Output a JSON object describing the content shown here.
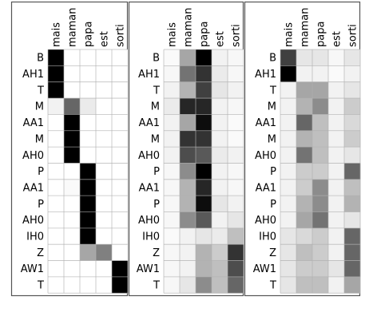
{
  "chart_data": {
    "type": "heatmap",
    "x_labels": [
      "mais",
      "maman",
      "papa",
      "est",
      "sorti"
    ],
    "y_labels": [
      "B",
      "AH1",
      "T",
      "M",
      "AA1",
      "M",
      "AH0",
      "P",
      "AA1",
      "P",
      "AH0",
      "IH0",
      "Z",
      "AW1",
      "T"
    ],
    "colormap": "gray_r",
    "value_range": [
      0,
      1
    ],
    "grid": true,
    "panels": [
      {
        "values": [
          [
            1.0,
            0.0,
            0.0,
            0.0,
            0.0
          ],
          [
            1.0,
            0.0,
            0.0,
            0.0,
            0.0
          ],
          [
            1.0,
            0.0,
            0.0,
            0.0,
            0.0
          ],
          [
            0.05,
            0.6,
            0.08,
            0.0,
            0.0
          ],
          [
            0.0,
            1.0,
            0.0,
            0.0,
            0.0
          ],
          [
            0.0,
            1.0,
            0.0,
            0.0,
            0.0
          ],
          [
            0.0,
            1.0,
            0.0,
            0.0,
            0.0
          ],
          [
            0.0,
            0.0,
            1.0,
            0.0,
            0.0
          ],
          [
            0.0,
            0.02,
            1.0,
            0.0,
            0.0
          ],
          [
            0.0,
            0.0,
            1.0,
            0.0,
            0.0
          ],
          [
            0.0,
            0.0,
            1.0,
            0.0,
            0.0
          ],
          [
            0.0,
            0.0,
            1.0,
            0.0,
            0.0
          ],
          [
            0.0,
            0.0,
            0.35,
            0.5,
            0.0
          ],
          [
            0.0,
            0.0,
            0.0,
            0.0,
            1.0
          ],
          [
            0.0,
            0.0,
            0.0,
            0.0,
            1.0
          ]
        ]
      },
      {
        "values": [
          [
            0.02,
            0.35,
            1.0,
            0.05,
            0.03
          ],
          [
            0.03,
            0.55,
            0.8,
            0.08,
            0.03
          ],
          [
            0.05,
            0.3,
            0.75,
            0.1,
            0.05
          ],
          [
            0.08,
            0.85,
            0.85,
            0.05,
            0.03
          ],
          [
            0.05,
            0.35,
            0.95,
            0.05,
            0.02
          ],
          [
            0.05,
            0.8,
            0.8,
            0.05,
            0.02
          ],
          [
            0.05,
            0.7,
            0.65,
            0.08,
            0.05
          ],
          [
            0.03,
            0.45,
            1.0,
            0.05,
            0.03
          ],
          [
            0.03,
            0.3,
            0.85,
            0.05,
            0.03
          ],
          [
            0.03,
            0.3,
            0.95,
            0.1,
            0.05
          ],
          [
            0.03,
            0.45,
            0.65,
            0.05,
            0.1
          ],
          [
            0.02,
            0.05,
            0.1,
            0.08,
            0.25
          ],
          [
            0.03,
            0.05,
            0.3,
            0.2,
            0.8
          ],
          [
            0.03,
            0.05,
            0.3,
            0.25,
            0.7
          ],
          [
            0.03,
            0.1,
            0.45,
            0.25,
            0.6
          ]
        ]
      },
      {
        "values": [
          [
            0.75,
            0.1,
            0.1,
            0.03,
            0.1
          ],
          [
            1.0,
            0.05,
            0.05,
            0.02,
            0.05
          ],
          [
            0.05,
            0.35,
            0.35,
            0.05,
            0.1
          ],
          [
            0.05,
            0.3,
            0.45,
            0.05,
            0.2
          ],
          [
            0.05,
            0.6,
            0.25,
            0.05,
            0.15
          ],
          [
            0.05,
            0.3,
            0.25,
            0.05,
            0.2
          ],
          [
            0.05,
            0.55,
            0.25,
            0.05,
            0.1
          ],
          [
            0.05,
            0.2,
            0.2,
            0.05,
            0.6
          ],
          [
            0.05,
            0.2,
            0.45,
            0.05,
            0.25
          ],
          [
            0.05,
            0.3,
            0.45,
            0.05,
            0.3
          ],
          [
            0.05,
            0.35,
            0.55,
            0.05,
            0.1
          ],
          [
            0.1,
            0.15,
            0.2,
            0.05,
            0.6
          ],
          [
            0.1,
            0.25,
            0.2,
            0.05,
            0.6
          ],
          [
            0.1,
            0.2,
            0.2,
            0.1,
            0.6
          ],
          [
            0.1,
            0.25,
            0.25,
            0.05,
            0.35
          ]
        ]
      }
    ]
  }
}
